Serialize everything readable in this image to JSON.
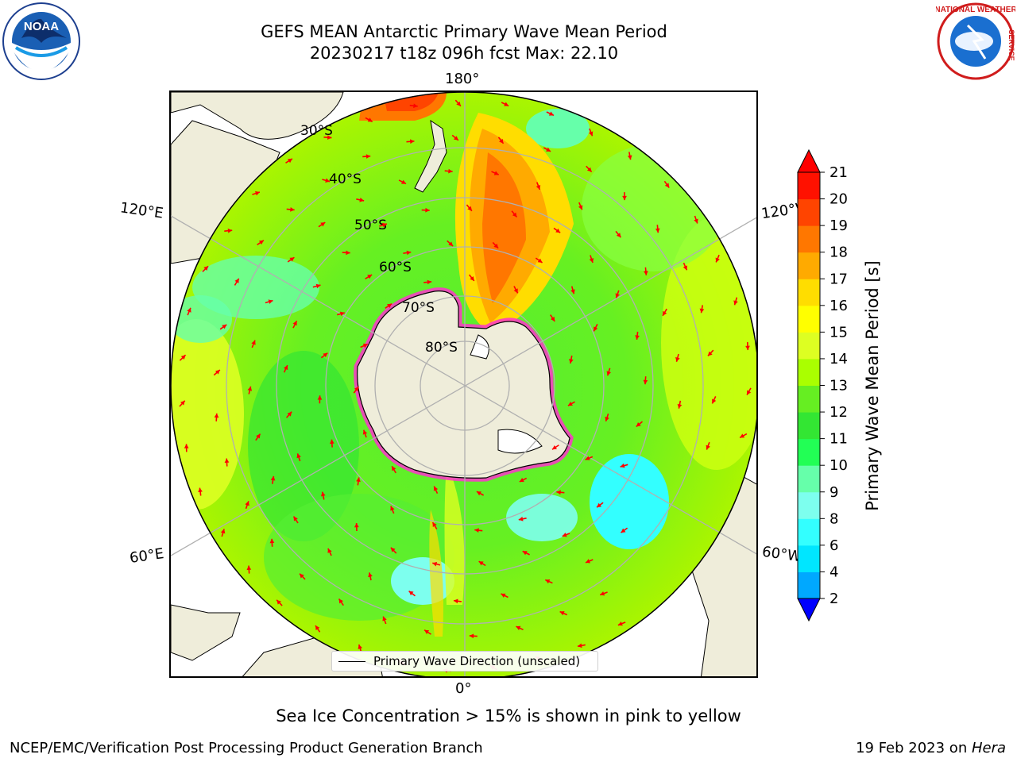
{
  "title_line1": "GEFS MEAN Antarctic Primary Wave Mean Period",
  "title_line2": "20230217 t18z 096h fcst   Max: 22.10",
  "map": {
    "projection": "south-polar-stereographic",
    "lon_labels": {
      "top": "180°",
      "bottom": "0°",
      "upper_left": "120°E",
      "upper_right": "120°W",
      "lower_left": "60°E",
      "lower_right": "60°W"
    },
    "lat_labels": [
      "30°S",
      "40°S",
      "50°S",
      "60°S",
      "70°S",
      "80°S"
    ],
    "arrow_color": "#ff0000",
    "land_color": "#efedda",
    "ice_note_colors": "pink to yellow"
  },
  "legend": {
    "label": "Primary Wave Direction (unscaled)"
  },
  "colorbar": {
    "label": "Primary Wave Mean Period [s]",
    "ticks": [
      "2",
      "4",
      "6",
      "8",
      "9",
      "10",
      "11",
      "12",
      "13",
      "14",
      "15",
      "16",
      "17",
      "18",
      "19",
      "20",
      "21"
    ],
    "colors": [
      "#0055ff",
      "#00a8ff",
      "#00e6ff",
      "#33ffff",
      "#7dffee",
      "#66ffaa",
      "#22ff55",
      "#33e633",
      "#66ee22",
      "#aaff00",
      "#ddff22",
      "#ffff00",
      "#ffdd00",
      "#ffaa00",
      "#ff7700",
      "#ff4400",
      "#ff1100"
    ],
    "min_color": "#0000ff",
    "max_color": "#ff0000"
  },
  "ice_note": "Sea Ice Concentration > 15% is shown in pink to yellow",
  "footer": {
    "left": "NCEP/EMC/Verification Post Processing Product Generation Branch",
    "right_prefix": "19 Feb 2023 on ",
    "right_host": "Hera"
  },
  "logos": {
    "left": "NOAA",
    "right_top": "NATIONAL WEATHER",
    "right_side": "SERVICE"
  }
}
